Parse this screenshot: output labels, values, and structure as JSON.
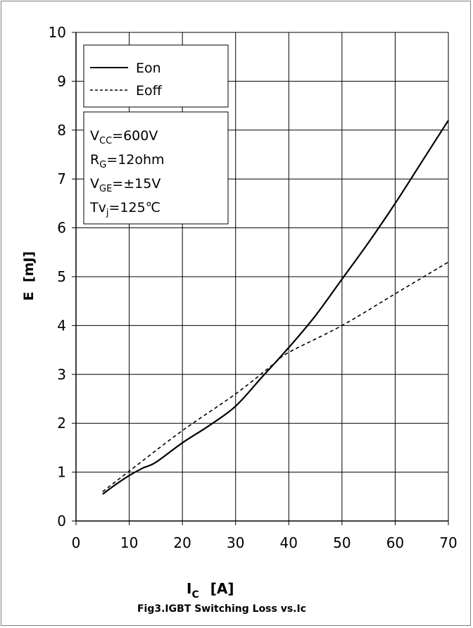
{
  "chart_data": {
    "type": "line",
    "title": "Fig3.IGBT Switching Loss vs.Ic",
    "xlabel": {
      "main": "I",
      "sub": "C",
      "unit": "[A]"
    },
    "ylabel": "E  [mJ]",
    "xlim": [
      0,
      70
    ],
    "ylim": [
      0,
      10
    ],
    "xticks": [
      0,
      10,
      20,
      30,
      40,
      50,
      60,
      70
    ],
    "yticks": [
      0,
      1,
      2,
      3,
      4,
      5,
      6,
      7,
      8,
      9,
      10
    ],
    "grid": true,
    "legend_position": "top-left",
    "series": [
      {
        "name": "Eon",
        "style": "solid",
        "color": "#000000",
        "x": [
          5,
          7.5,
          10,
          12.5,
          15,
          20,
          25,
          30,
          35,
          40,
          45,
          50,
          55,
          60,
          65,
          70
        ],
        "y": [
          0.55,
          0.75,
          0.93,
          1.08,
          1.2,
          1.6,
          1.95,
          2.35,
          2.95,
          3.55,
          4.2,
          4.95,
          5.7,
          6.5,
          7.35,
          8.2
        ]
      },
      {
        "name": "Eoff",
        "style": "dashed",
        "color": "#000000",
        "x": [
          5,
          10,
          20,
          30,
          37,
          40,
          50,
          60,
          70
        ],
        "y": [
          0.6,
          1.02,
          1.85,
          2.6,
          3.2,
          3.45,
          4.0,
          4.65,
          5.3
        ]
      }
    ],
    "conditions": [
      {
        "main": "V",
        "sub": "CC",
        "rest": "=600V"
      },
      {
        "main": "R",
        "sub": "G",
        "rest": "=12ohm"
      },
      {
        "main": "V",
        "sub": "GE",
        "rest": "=±15V"
      },
      {
        "main": "Tv",
        "sub": "j",
        "rest": "=125℃"
      }
    ]
  }
}
